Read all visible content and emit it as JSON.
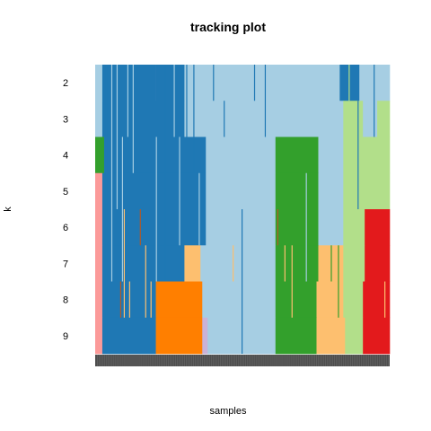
{
  "chart_data": {
    "type": "heatmap",
    "title": "tracking plot",
    "xlabel": "samples",
    "ylabel": "k",
    "k_values": [
      2,
      3,
      4,
      5,
      6,
      7,
      8,
      9
    ],
    "num_samples": 165,
    "grid": false,
    "legend": "none",
    "palette": {
      "light-blue": "#a6cee3",
      "dark-blue": "#1f78b4",
      "light-green": "#b2df8a",
      "green": "#33a02c",
      "pink": "#fb9a99",
      "red": "#e31a1c",
      "light-orange": "#fdbf6f",
      "orange": "#ff7f00",
      "lavender": "#cab2d6",
      "brown": "#b15928",
      "sample-bar": "#4d4d4d"
    },
    "rows": [
      {
        "k": 2,
        "segments": [
          {
            "from": 0,
            "to": 4,
            "color": "light-blue"
          },
          {
            "from": 4,
            "to": 34,
            "color": "dark-blue"
          },
          {
            "from": 34,
            "to": 50,
            "color": "dark-blue"
          },
          {
            "from": 50,
            "to": 137,
            "color": "light-blue"
          },
          {
            "from": 137,
            "to": 148,
            "color": "dark-blue"
          },
          {
            "from": 148,
            "to": 165,
            "color": "light-blue"
          }
        ]
      },
      {
        "k": 3,
        "segments": [
          {
            "from": 0,
            "to": 4,
            "color": "light-blue"
          },
          {
            "from": 4,
            "to": 50,
            "color": "dark-blue"
          },
          {
            "from": 50,
            "to": 139,
            "color": "light-blue"
          },
          {
            "from": 139,
            "to": 150,
            "color": "light-green"
          },
          {
            "from": 150,
            "to": 158,
            "color": "light-blue"
          },
          {
            "from": 158,
            "to": 165,
            "color": "light-green"
          }
        ]
      },
      {
        "k": 4,
        "segments": [
          {
            "from": 0,
            "to": 5,
            "color": "green"
          },
          {
            "from": 5,
            "to": 62,
            "color": "dark-blue"
          },
          {
            "from": 62,
            "to": 101,
            "color": "light-blue"
          },
          {
            "from": 101,
            "to": 125,
            "color": "green"
          },
          {
            "from": 125,
            "to": 139,
            "color": "light-blue"
          },
          {
            "from": 139,
            "to": 165,
            "color": "light-green"
          }
        ]
      },
      {
        "k": 5,
        "segments": [
          {
            "from": 0,
            "to": 4,
            "color": "pink"
          },
          {
            "from": 4,
            "to": 62,
            "color": "dark-blue"
          },
          {
            "from": 62,
            "to": 101,
            "color": "light-blue"
          },
          {
            "from": 101,
            "to": 125,
            "color": "green"
          },
          {
            "from": 125,
            "to": 139,
            "color": "light-blue"
          },
          {
            "from": 139,
            "to": 165,
            "color": "light-green"
          }
        ]
      },
      {
        "k": 6,
        "segments": [
          {
            "from": 0,
            "to": 4,
            "color": "pink"
          },
          {
            "from": 4,
            "to": 62,
            "color": "dark-blue"
          },
          {
            "from": 62,
            "to": 101,
            "color": "light-blue"
          },
          {
            "from": 101,
            "to": 125,
            "color": "green"
          },
          {
            "from": 125,
            "to": 139,
            "color": "light-blue"
          },
          {
            "from": 139,
            "to": 151,
            "color": "light-green"
          },
          {
            "from": 151,
            "to": 165,
            "color": "red"
          }
        ]
      },
      {
        "k": 7,
        "segments": [
          {
            "from": 0,
            "to": 4,
            "color": "pink"
          },
          {
            "from": 4,
            "to": 50,
            "color": "dark-blue"
          },
          {
            "from": 50,
            "to": 59,
            "color": "light-orange"
          },
          {
            "from": 59,
            "to": 101,
            "color": "light-blue"
          },
          {
            "from": 101,
            "to": 125,
            "color": "green"
          },
          {
            "from": 125,
            "to": 139,
            "color": "light-orange"
          },
          {
            "from": 139,
            "to": 151,
            "color": "light-green"
          },
          {
            "from": 151,
            "to": 165,
            "color": "red"
          }
        ]
      },
      {
        "k": 8,
        "segments": [
          {
            "from": 0,
            "to": 4,
            "color": "pink"
          },
          {
            "from": 4,
            "to": 34,
            "color": "dark-blue"
          },
          {
            "from": 34,
            "to": 60,
            "color": "orange"
          },
          {
            "from": 60,
            "to": 101,
            "color": "light-blue"
          },
          {
            "from": 101,
            "to": 124,
            "color": "green"
          },
          {
            "from": 124,
            "to": 139,
            "color": "light-orange"
          },
          {
            "from": 139,
            "to": 150,
            "color": "light-green"
          },
          {
            "from": 150,
            "to": 165,
            "color": "red"
          }
        ]
      },
      {
        "k": 9,
        "segments": [
          {
            "from": 0,
            "to": 4,
            "color": "pink"
          },
          {
            "from": 4,
            "to": 34,
            "color": "dark-blue"
          },
          {
            "from": 34,
            "to": 60,
            "color": "orange"
          },
          {
            "from": 60,
            "to": 63,
            "color": "lavender"
          },
          {
            "from": 63,
            "to": 101,
            "color": "light-blue"
          },
          {
            "from": 101,
            "to": 124,
            "color": "green"
          },
          {
            "from": 124,
            "to": 140,
            "color": "light-orange"
          },
          {
            "from": 140,
            "to": 150,
            "color": "light-green"
          },
          {
            "from": 150,
            "to": 165,
            "color": "red"
          }
        ]
      }
    ],
    "streaks": [
      {
        "sample": 6,
        "k_from": 2,
        "k_to": 9,
        "color": "dark-blue"
      },
      {
        "sample": 9,
        "k_from": 2,
        "k_to": 7,
        "color": "light-blue"
      },
      {
        "sample": 12,
        "k_from": 2,
        "k_to": 5,
        "color": "light-blue"
      },
      {
        "sample": 15,
        "k_from": 4,
        "k_to": 7,
        "color": "light-blue"
      },
      {
        "sample": 18,
        "k_from": 2,
        "k_to": 3,
        "color": "light-blue"
      },
      {
        "sample": 21,
        "k_from": 2,
        "k_to": 4,
        "color": "light-blue"
      },
      {
        "sample": 14,
        "k_from": 8,
        "k_to": 8,
        "color": "brown"
      },
      {
        "sample": 16,
        "k_from": 6,
        "k_to": 8,
        "color": "light-orange"
      },
      {
        "sample": 19,
        "k_from": 8,
        "k_to": 8,
        "color": "light-orange"
      },
      {
        "sample": 25,
        "k_from": 6,
        "k_to": 6,
        "color": "brown"
      },
      {
        "sample": 28,
        "k_from": 7,
        "k_to": 8,
        "color": "light-orange"
      },
      {
        "sample": 31,
        "k_from": 8,
        "k_to": 8,
        "color": "light-orange"
      },
      {
        "sample": 34,
        "k_from": 4,
        "k_to": 7,
        "color": "light-blue"
      },
      {
        "sample": 39,
        "k_from": 2,
        "k_to": 7,
        "color": "dark-blue"
      },
      {
        "sample": 44,
        "k_from": 2,
        "k_to": 3,
        "color": "light-blue"
      },
      {
        "sample": 47,
        "k_from": 4,
        "k_to": 6,
        "color": "light-blue"
      },
      {
        "sample": 51,
        "k_from": 2,
        "k_to": 3,
        "color": "dark-blue"
      },
      {
        "sample": 55,
        "k_from": 2,
        "k_to": 4,
        "color": "dark-blue"
      },
      {
        "sample": 58,
        "k_from": 5,
        "k_to": 6,
        "color": "light-blue"
      },
      {
        "sample": 66,
        "k_from": 2,
        "k_to": 2,
        "color": "dark-blue"
      },
      {
        "sample": 72,
        "k_from": 3,
        "k_to": 3,
        "color": "dark-blue"
      },
      {
        "sample": 77,
        "k_from": 7,
        "k_to": 7,
        "color": "light-orange"
      },
      {
        "sample": 82,
        "k_from": 6,
        "k_to": 9,
        "color": "dark-blue"
      },
      {
        "sample": 89,
        "k_from": 2,
        "k_to": 2,
        "color": "dark-blue"
      },
      {
        "sample": 95,
        "k_from": 2,
        "k_to": 3,
        "color": "dark-blue"
      },
      {
        "sample": 102,
        "k_from": 6,
        "k_to": 6,
        "color": "brown"
      },
      {
        "sample": 106,
        "k_from": 7,
        "k_to": 7,
        "color": "light-orange"
      },
      {
        "sample": 110,
        "k_from": 7,
        "k_to": 8,
        "color": "light-orange"
      },
      {
        "sample": 118,
        "k_from": 5,
        "k_to": 7,
        "color": "light-blue"
      },
      {
        "sample": 132,
        "k_from": 7,
        "k_to": 7,
        "color": "green"
      },
      {
        "sample": 136,
        "k_from": 7,
        "k_to": 8,
        "color": "green"
      },
      {
        "sample": 142,
        "k_from": 2,
        "k_to": 2,
        "color": "light-green"
      },
      {
        "sample": 147,
        "k_from": 3,
        "k_to": 5,
        "color": "dark-blue"
      },
      {
        "sample": 156,
        "k_from": 2,
        "k_to": 3,
        "color": "dark-blue"
      },
      {
        "sample": 162,
        "k_from": 8,
        "k_to": 8,
        "color": "light-orange"
      }
    ]
  }
}
